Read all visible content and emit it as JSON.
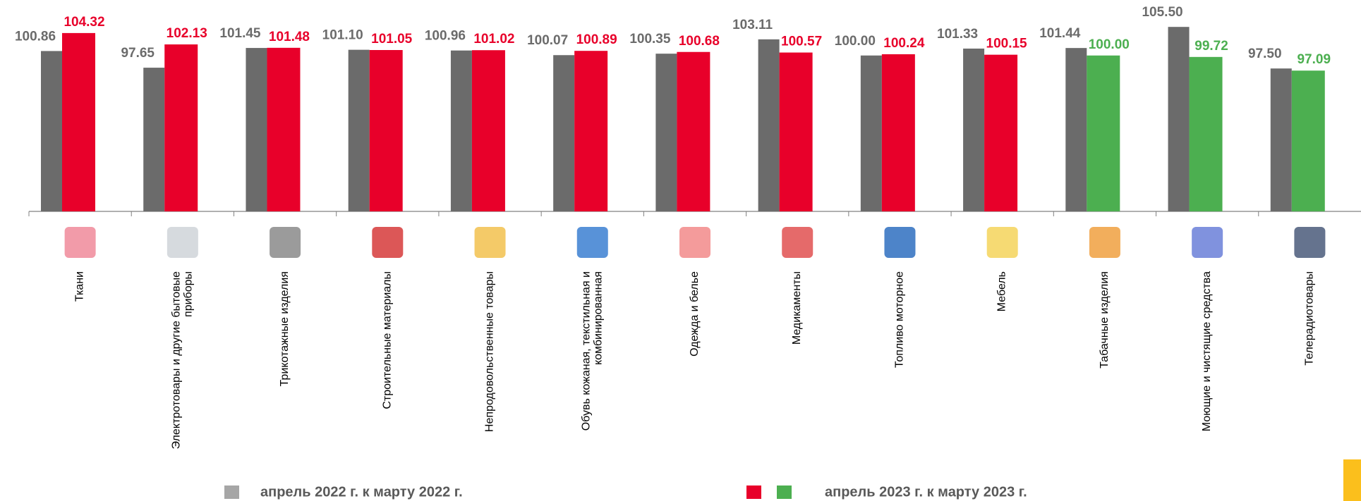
{
  "chart_data": {
    "type": "bar",
    "categories": [
      "Ткани",
      "Электротовары и другие бытовые приборы",
      "Трикотажные изделия",
      "Строительные материалы",
      "Непродовольственные товары",
      "Обувь кожаная, текстильная и комбинированная",
      "Одежда и белье",
      "Медикаменты",
      "Топливо моторное",
      "Мебель",
      "Табачные изделия",
      "Моющие и чистящие средства",
      "Телерадиотовары"
    ],
    "series": [
      {
        "name": "апрель 2022 г. к марту 2022 г.",
        "color": "#6b6b6b",
        "values": [
          100.86,
          97.65,
          101.45,
          101.1,
          100.96,
          100.07,
          100.35,
          103.11,
          100,
          101.33,
          101.44,
          105.5,
          97.5
        ],
        "value_labels": [
          "100.86",
          "97.65",
          "101.45",
          "101.10",
          "100.96",
          "100.07",
          "100.35",
          "103.11",
          "100.00",
          "101.33",
          "101.44",
          "105.50",
          "97.50"
        ]
      },
      {
        "name": "апрель 2023 г. к марту 2023 г.",
        "colors": [
          "#e8002a",
          "#e8002a",
          "#e8002a",
          "#e8002a",
          "#e8002a",
          "#e8002a",
          "#e8002a",
          "#e8002a",
          "#e8002a",
          "#e8002a",
          "#4caf50",
          "#4caf50",
          "#4caf50"
        ],
        "values": [
          104.32,
          102.13,
          101.48,
          101.05,
          101.02,
          100.89,
          100.68,
          100.57,
          100.24,
          100.15,
          100,
          99.72,
          97.09
        ],
        "value_labels": [
          "104.32",
          "102.13",
          "101.48",
          "101.05",
          "101.02",
          "100.89",
          "100.68",
          "100.57",
          "100.24",
          "100.15",
          "100.00",
          "99.72",
          "97.09"
        ]
      }
    ],
    "ylim": [
      70,
      110
    ]
  }
}
